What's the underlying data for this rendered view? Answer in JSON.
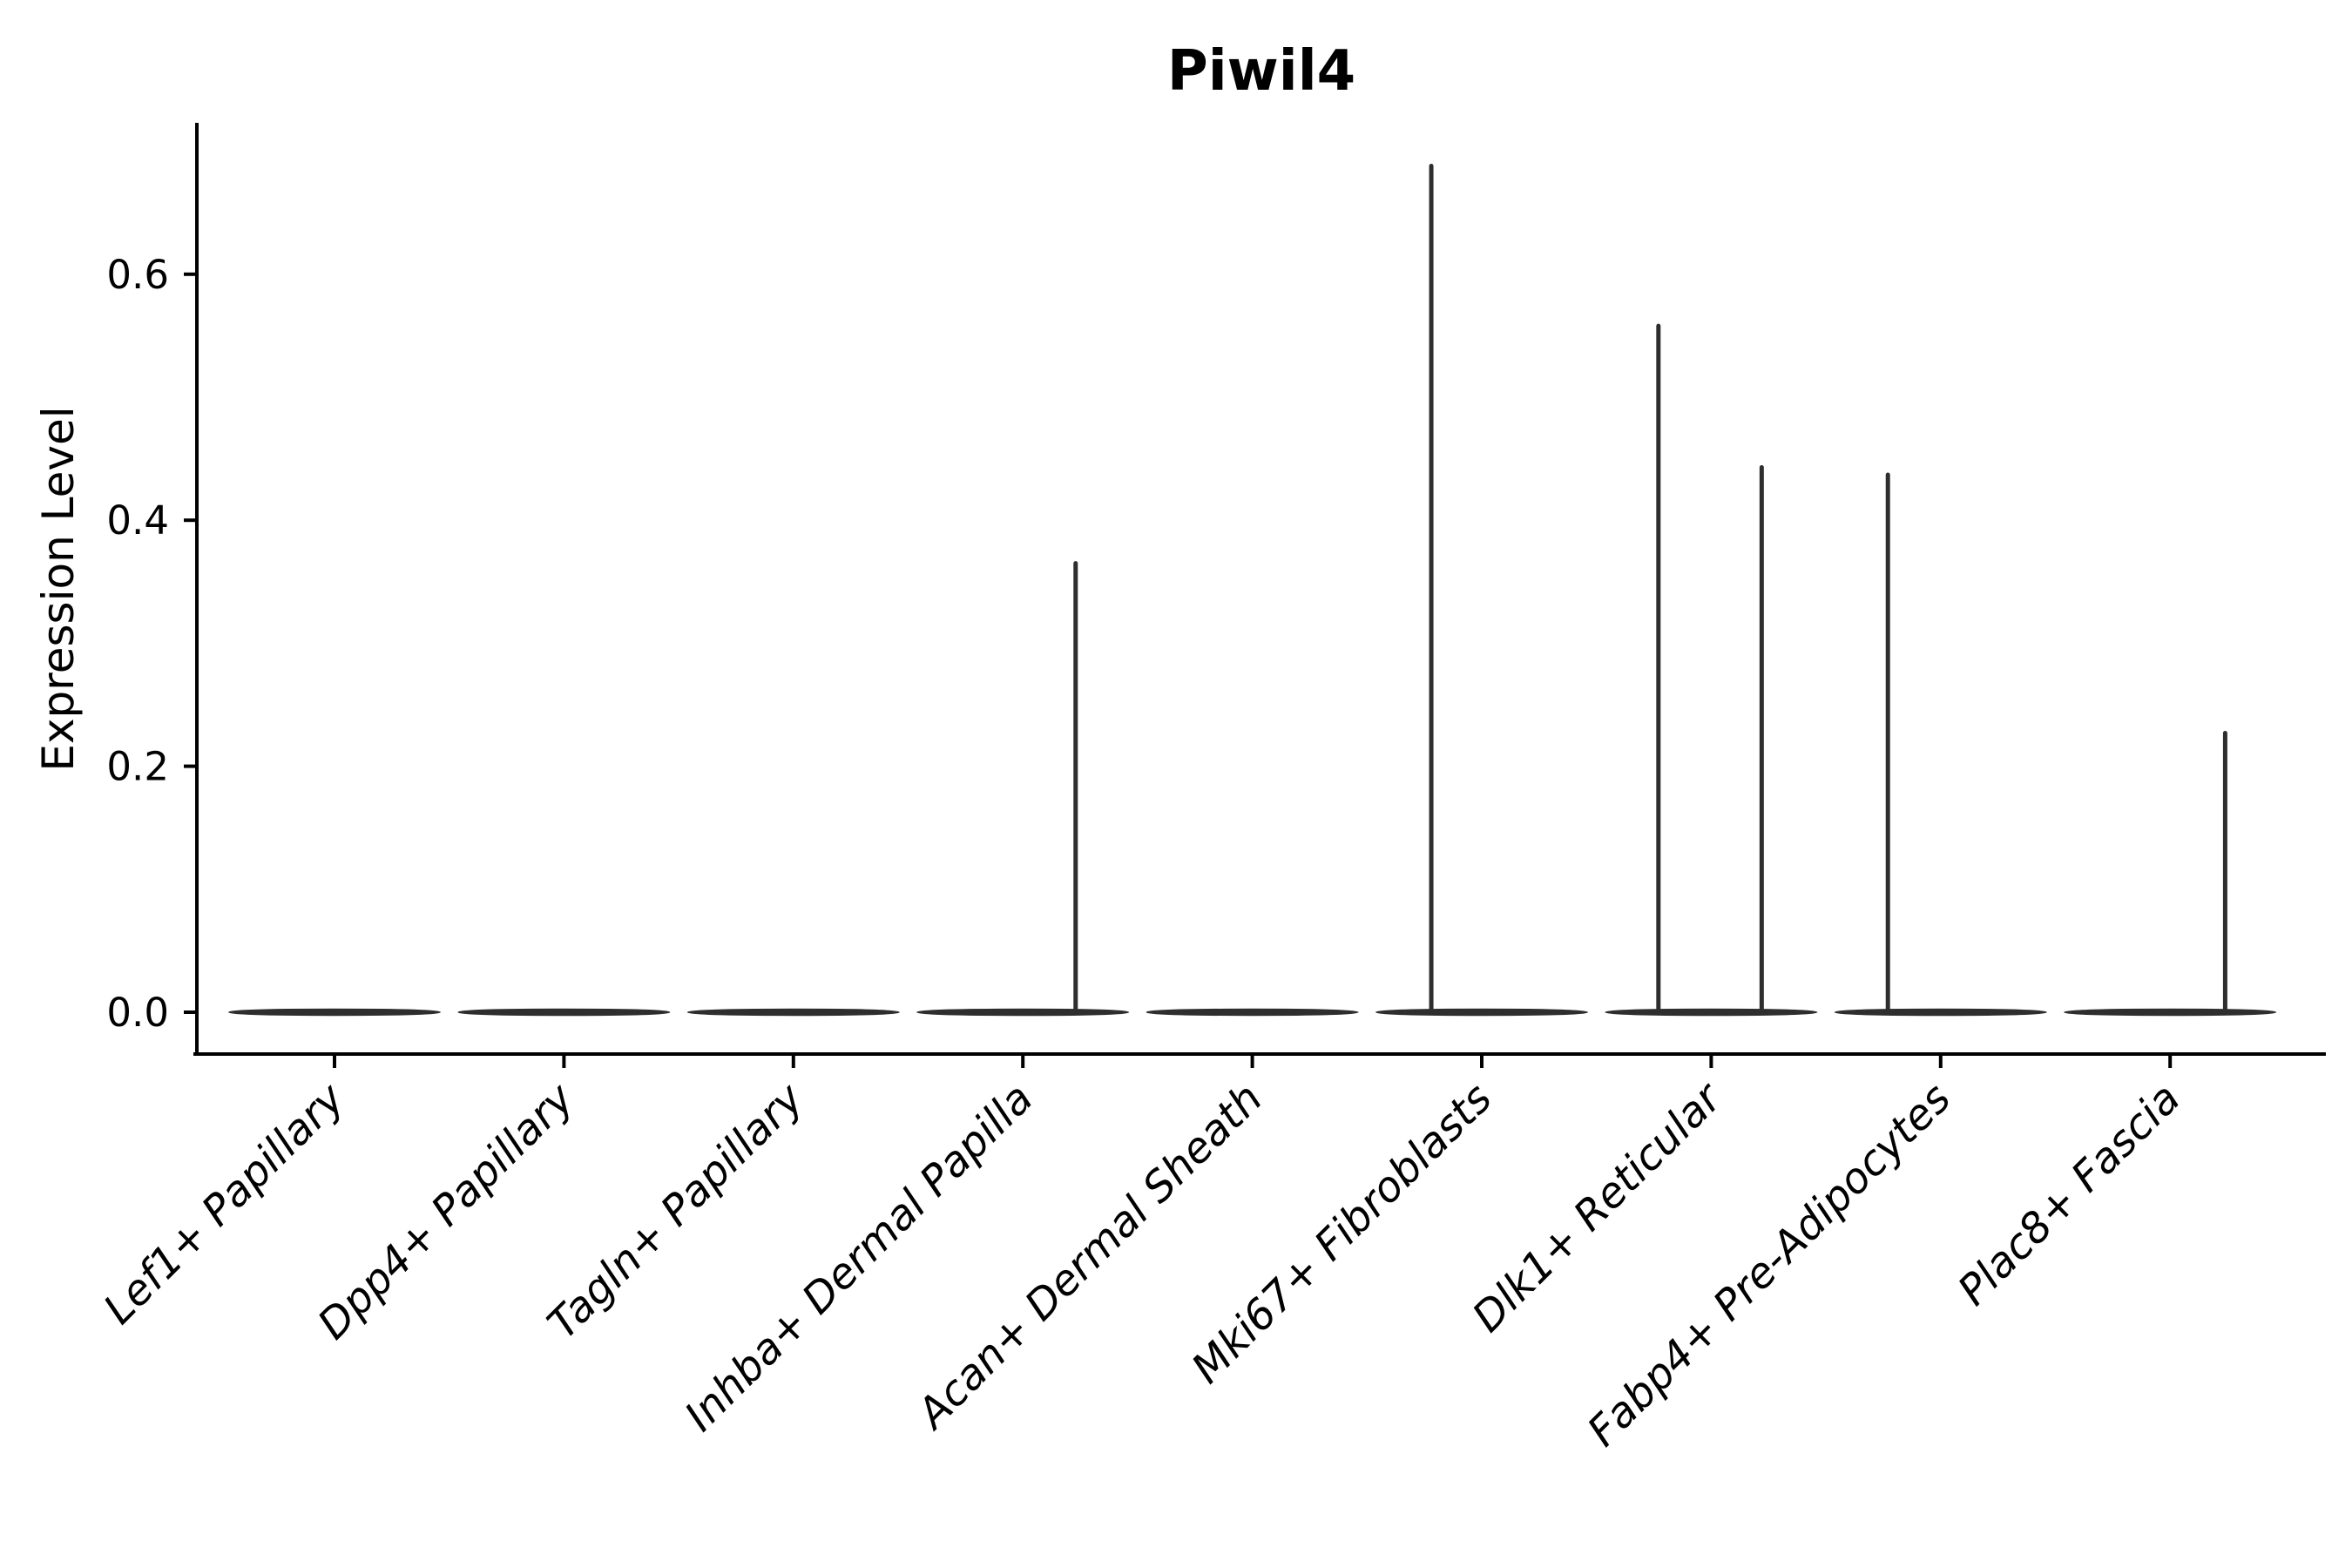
{
  "chart_data": {
    "type": "violin",
    "title": "Piwil4",
    "ylabel": "Expression Level",
    "xlabel": "",
    "categories": [
      "Lef1+ Papillary",
      "Dpp4+ Papillary",
      "Tagln+ Papillary",
      "Inhba+ Dermal Papilla",
      "Acan+ Dermal Sheath",
      "Mki67+ Fibroblasts",
      "Dlk1+ Reticular",
      "Fabp4+ Pre-Adipocytes",
      "Plac8+ Fascia"
    ],
    "yticks": [
      {
        "value": 0.0,
        "label": "0.0"
      },
      {
        "value": 0.2,
        "label": "0.2"
      },
      {
        "value": 0.4,
        "label": "0.4"
      },
      {
        "value": 0.6,
        "label": "0.6"
      }
    ],
    "ylim": [
      0,
      0.72
    ],
    "grid": false,
    "legend": null,
    "x_label_rotation_deg": 45,
    "violin_color": "#2e2e2e",
    "axis_color": "#000000",
    "violins": [
      {
        "category": "Lef1+ Papillary",
        "baseline_value": 0.0,
        "spikes": []
      },
      {
        "category": "Dpp4+ Papillary",
        "baseline_value": 0.0,
        "spikes": []
      },
      {
        "category": "Tagln+ Papillary",
        "baseline_value": 0.0,
        "spikes": []
      },
      {
        "category": "Inhba+ Dermal Papilla",
        "baseline_value": 0.0,
        "spikes": [
          {
            "offset_frac": 0.23,
            "max_value": 0.365
          }
        ]
      },
      {
        "category": "Acan+ Dermal Sheath",
        "baseline_value": 0.0,
        "spikes": []
      },
      {
        "category": "Mki67+ Fibroblasts",
        "baseline_value": 0.0,
        "spikes": [
          {
            "offset_frac": -0.22,
            "max_value": 0.688
          }
        ]
      },
      {
        "category": "Dlk1+ Reticular",
        "baseline_value": 0.0,
        "spikes": [
          {
            "offset_frac": -0.23,
            "max_value": 0.558
          },
          {
            "offset_frac": 0.22,
            "max_value": 0.443
          }
        ]
      },
      {
        "category": "Fabp4+ Pre-Adipocytes",
        "baseline_value": 0.0,
        "spikes": [
          {
            "offset_frac": -0.23,
            "max_value": 0.437
          }
        ]
      },
      {
        "category": "Plac8+ Fascia",
        "baseline_value": 0.0,
        "spikes": [
          {
            "offset_frac": 0.24,
            "max_value": 0.227
          }
        ]
      }
    ]
  }
}
